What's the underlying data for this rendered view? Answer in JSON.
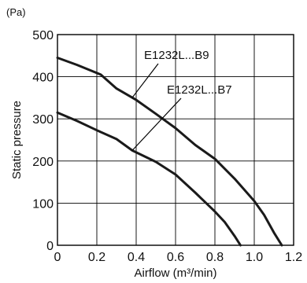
{
  "chart_data": {
    "type": "line",
    "unit_label": "(Pa)",
    "xlabel": "Airflow (m³/min)",
    "ylabel": "Static pressure",
    "xlim": [
      0,
      1.2
    ],
    "ylim": [
      0,
      500
    ],
    "x_ticks": [
      0,
      0.2,
      0.4,
      0.6,
      0.8,
      1.0,
      1.2
    ],
    "x_tick_labels": [
      "0",
      "0.2",
      "0.4",
      "0.6",
      "0.8",
      "1.0",
      "1.2"
    ],
    "y_ticks": [
      0,
      100,
      200,
      300,
      400,
      500
    ],
    "y_tick_labels": [
      "0",
      "100",
      "200",
      "300",
      "400",
      "500"
    ],
    "grid": true,
    "series": [
      {
        "name": "E1232L...B9",
        "points": [
          [
            0,
            445
          ],
          [
            0.1,
            428
          ],
          [
            0.22,
            405
          ],
          [
            0.3,
            372
          ],
          [
            0.4,
            345
          ],
          [
            0.5,
            312
          ],
          [
            0.6,
            278
          ],
          [
            0.7,
            238
          ],
          [
            0.8,
            205
          ],
          [
            0.9,
            158
          ],
          [
            1.0,
            105
          ],
          [
            1.05,
            72
          ],
          [
            1.1,
            30
          ],
          [
            1.14,
            0
          ]
        ]
      },
      {
        "name": "E1232L...B7",
        "points": [
          [
            0,
            315
          ],
          [
            0.1,
            295
          ],
          [
            0.2,
            273
          ],
          [
            0.3,
            252
          ],
          [
            0.38,
            225
          ],
          [
            0.5,
            198
          ],
          [
            0.6,
            168
          ],
          [
            0.7,
            125
          ],
          [
            0.8,
            80
          ],
          [
            0.85,
            55
          ],
          [
            0.9,
            22
          ],
          [
            0.93,
            0
          ]
        ]
      }
    ],
    "annotations": [
      {
        "text": "E1232L...B9",
        "series": 0,
        "at_x": 0.38
      },
      {
        "text": "E1232L...B7",
        "series": 1,
        "at_x": 0.38
      }
    ]
  }
}
